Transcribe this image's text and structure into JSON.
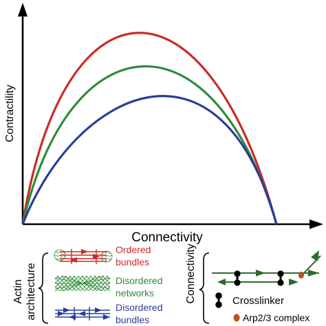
{
  "figure": {
    "y_axis_label": "Contractility",
    "x_axis_label": "Connectivity",
    "curves": [
      {
        "architecture": "ordered",
        "color": "#cc2a27",
        "relative_peak": 1.0
      },
      {
        "architecture": "disordered_networks",
        "color": "#2e8b3a",
        "relative_peak": 0.84
      },
      {
        "architecture": "disordered_bundles",
        "color": "#2a3c9a",
        "relative_peak": 0.68
      }
    ]
  },
  "legend": {
    "actin_title_line1": "Actin",
    "actin_title_line2": "architecture",
    "entries": [
      {
        "line1": "Ordered",
        "line2": "bundles",
        "color": "#cc2a27"
      },
      {
        "line1": "Disordered",
        "line2": "networks",
        "color": "#2e8b3a"
      },
      {
        "line1": "Disordered",
        "line2": "bundles",
        "color": "#2a3c9a"
      }
    ],
    "connectivity_title": "Connectivity",
    "crosslinker_label": "Crosslinker",
    "arp_label": "Arp2/3 complex",
    "filament_color": "#2e6b2e",
    "crosslinker_color": "#000000",
    "arp_color": "#b5521f"
  }
}
